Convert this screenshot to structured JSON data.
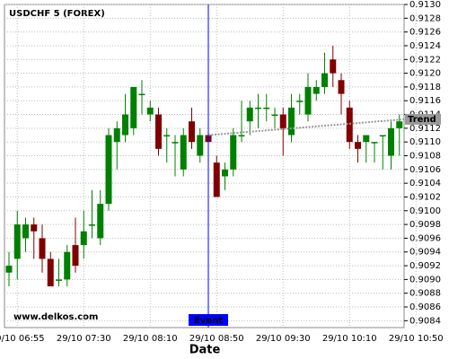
{
  "chart_data": {
    "type": "candlestick",
    "title": "USDCHF 5 (FOREX)",
    "x_label": "Date",
    "watermark": "www.delkos.com",
    "categories": [
      null,
      "29/10 06:55",
      null,
      null,
      null,
      null,
      null,
      null,
      null,
      "29/10 07:30",
      null,
      null,
      null,
      null,
      null,
      null,
      null,
      "29/10 08:10",
      null,
      null,
      null,
      null,
      null,
      null,
      null,
      "29/10 08:50",
      null,
      null,
      null,
      null,
      null,
      null,
      null,
      "29/10 09:30",
      null,
      null,
      null,
      null,
      null,
      null,
      null,
      "29/10 10:10",
      null,
      null,
      null,
      null,
      null,
      null,
      null,
      "29/10 10:50"
    ],
    "open": [
      0.9091,
      0.9093,
      0.9096,
      0.9098,
      0.9096,
      0.9093,
      0.909,
      0.909,
      0.9095,
      0.9095,
      0.9098,
      0.9096,
      0.9101,
      0.911,
      0.9111,
      0.9112,
      0.9117,
      0.9114,
      0.9114,
      0.9111,
      0.911,
      0.9106,
      0.9113,
      0.9108,
      0.9111,
      0.9107,
      0.9105,
      0.9106,
      0.9111,
      0.9113,
      0.9115,
      0.9115,
      0.9114,
      0.9114,
      0.9111,
      0.9116,
      0.9114,
      0.9117,
      0.9118,
      0.9122,
      0.9119,
      0.9115,
      0.911,
      0.911,
      0.911,
      0.9111,
      0.9108,
      0.9112,
      null,
      null
    ],
    "high": [
      0.9094,
      0.91,
      0.9099,
      0.9099,
      0.9098,
      0.9094,
      0.9093,
      0.9095,
      0.9099,
      0.91,
      0.9103,
      0.9103,
      0.9112,
      0.9113,
      0.9117,
      0.9118,
      0.9119,
      0.9116,
      0.9115,
      0.9112,
      0.9111,
      0.9112,
      0.9115,
      0.9112,
      0.9112,
      0.9108,
      0.9107,
      0.9112,
      0.9116,
      0.9116,
      0.9117,
      0.9117,
      0.9115,
      0.9115,
      0.9117,
      0.9117,
      0.912,
      0.9119,
      0.9123,
      0.9124,
      0.912,
      0.9116,
      0.9111,
      0.9111,
      0.911,
      0.9111,
      0.9113,
      0.9114,
      null,
      null
    ],
    "low": [
      0.9089,
      0.909,
      0.9094,
      0.9093,
      0.9091,
      0.9089,
      0.9089,
      0.9089,
      0.9091,
      0.9093,
      0.9096,
      0.9095,
      0.91,
      0.9106,
      0.911,
      0.9111,
      0.9114,
      0.9113,
      0.9108,
      0.9107,
      0.9105,
      0.9105,
      0.9109,
      0.9107,
      0.911,
      0.9102,
      0.9103,
      0.9105,
      0.911,
      0.9111,
      0.9112,
      0.9113,
      0.9112,
      0.9108,
      0.911,
      0.9114,
      0.9113,
      0.9116,
      0.9117,
      0.9118,
      0.9114,
      0.9109,
      0.9107,
      0.9107,
      0.9107,
      0.9106,
      0.9106,
      0.9108,
      null,
      null
    ],
    "close": [
      0.9092,
      0.9098,
      0.9098,
      0.9097,
      0.9093,
      0.9089,
      0.909,
      0.9094,
      0.9092,
      0.9097,
      0.9098,
      0.9101,
      0.9111,
      0.9112,
      0.9114,
      0.9118,
      0.9117,
      0.9115,
      0.9109,
      0.9111,
      0.911,
      0.9111,
      0.911,
      0.9111,
      0.911,
      0.9102,
      0.9106,
      0.9111,
      0.9111,
      0.9115,
      0.9115,
      0.9115,
      0.9114,
      0.9112,
      0.9115,
      0.9116,
      0.9118,
      0.9118,
      0.912,
      0.912,
      0.9117,
      0.911,
      0.9109,
      0.9111,
      0.911,
      0.9111,
      0.9112,
      0.9113,
      null,
      null
    ],
    "up_color": "#008000",
    "down_color": "#800000",
    "ylim": [
      0.9083,
      0.913
    ],
    "yticks": [
      0.9084,
      0.9086,
      0.9088,
      {
        "value": 0.909,
        "label": "0.9090"
      },
      0.9092,
      0.9094,
      0.9096,
      0.9098,
      {
        "value": 0.91,
        "label": "0.9100"
      },
      0.9102,
      0.9104,
      0.9106,
      0.9108,
      {
        "value": 0.911,
        "label": "0.9110"
      },
      0.9112,
      0.9114,
      0.9116,
      0.9118,
      {
        "value": 0.912,
        "label": "0.9120"
      },
      0.9122,
      0.9124,
      0.9126,
      0.9128,
      {
        "value": 0.913,
        "label": "0.9130"
      }
    ],
    "grid": true,
    "event": {
      "label": "Event",
      "color": "#0000ff"
    },
    "trend": {
      "label": "Trend",
      "values": [
        0.9111,
        0.91133
      ],
      "color": "#999999"
    }
  }
}
